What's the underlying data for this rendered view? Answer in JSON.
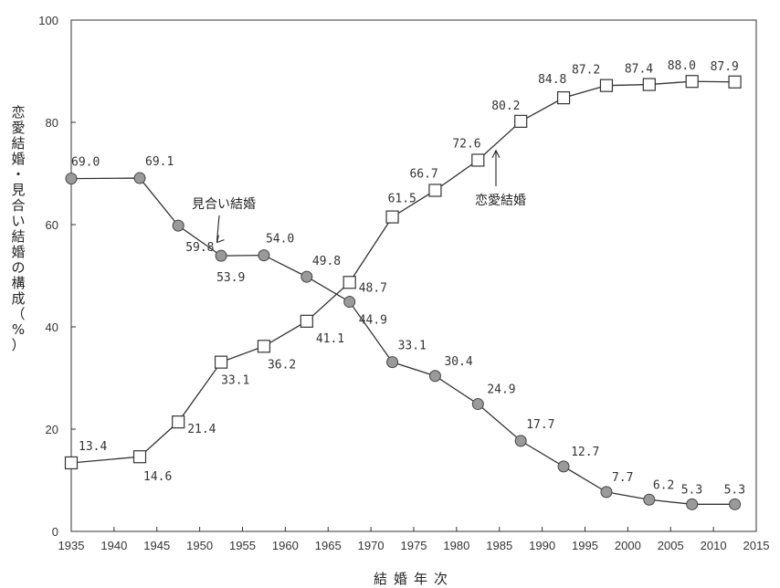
{
  "chart_data": {
    "type": "line",
    "title": "",
    "xlabel": "結婚年次",
    "ylabel": "恋愛結婚・見合い結婚の構成（%）",
    "xlim": [
      1935,
      2015
    ],
    "ylim": [
      0,
      100
    ],
    "xticks": [
      1935,
      1940,
      1945,
      1950,
      1955,
      1960,
      1965,
      1970,
      1975,
      1980,
      1985,
      1990,
      1995,
      2000,
      2005,
      2010,
      2015
    ],
    "yticks": [
      0,
      20,
      40,
      60,
      80,
      100
    ],
    "grid": false,
    "series": [
      {
        "name": "見合い結婚",
        "marker": "circle",
        "color": "#9a9a9a",
        "points": [
          {
            "x": 1935,
            "y": 69.0,
            "label": "69.0"
          },
          {
            "x": 1943,
            "y": 69.1,
            "label": "69.1"
          },
          {
            "x": 1947.5,
            "y": 59.8,
            "label": "59.8"
          },
          {
            "x": 1952.5,
            "y": 53.9,
            "label": "53.9"
          },
          {
            "x": 1957.5,
            "y": 54.0,
            "label": "54.0"
          },
          {
            "x": 1962.5,
            "y": 49.8,
            "label": "49.8"
          },
          {
            "x": 1967.5,
            "y": 44.9,
            "label": "44.9"
          },
          {
            "x": 1972.5,
            "y": 33.1,
            "label": "33.1"
          },
          {
            "x": 1977.5,
            "y": 30.4,
            "label": "30.4"
          },
          {
            "x": 1982.5,
            "y": 24.9,
            "label": "24.9"
          },
          {
            "x": 1987.5,
            "y": 17.7,
            "label": "17.7"
          },
          {
            "x": 1992.5,
            "y": 12.7,
            "label": "12.7"
          },
          {
            "x": 1997.5,
            "y": 7.7,
            "label": "7.7"
          },
          {
            "x": 2002.5,
            "y": 6.2,
            "label": "6.2"
          },
          {
            "x": 2007.5,
            "y": 5.3,
            "label": "5.3"
          },
          {
            "x": 2012.5,
            "y": 5.3,
            "label": "5.3"
          }
        ]
      },
      {
        "name": "恋愛結婚",
        "marker": "square",
        "color": "#ffffff",
        "points": [
          {
            "x": 1935,
            "y": 13.4,
            "label": "13.4"
          },
          {
            "x": 1943,
            "y": 14.6,
            "label": "14.6"
          },
          {
            "x": 1947.5,
            "y": 21.4,
            "label": "21.4"
          },
          {
            "x": 1952.5,
            "y": 33.1,
            "label": "33.1"
          },
          {
            "x": 1957.5,
            "y": 36.2,
            "label": "36.2"
          },
          {
            "x": 1962.5,
            "y": 41.1,
            "label": "41.1"
          },
          {
            "x": 1967.5,
            "y": 48.7,
            "label": "48.7"
          },
          {
            "x": 1972.5,
            "y": 61.5,
            "label": "61.5"
          },
          {
            "x": 1977.5,
            "y": 66.7,
            "label": "66.7"
          },
          {
            "x": 1982.5,
            "y": 72.6,
            "label": "72.6"
          },
          {
            "x": 1987.5,
            "y": 80.2,
            "label": "80.2"
          },
          {
            "x": 1992.5,
            "y": 84.8,
            "label": "84.8"
          },
          {
            "x": 1997.5,
            "y": 87.2,
            "label": "87.2"
          },
          {
            "x": 2002.5,
            "y": 87.4,
            "label": "87.4"
          },
          {
            "x": 2007.5,
            "y": 88.0,
            "label": "88.0"
          },
          {
            "x": 2012.5,
            "y": 87.9,
            "label": "87.9"
          }
        ]
      }
    ],
    "annotations": [
      {
        "text": "見合い結婚",
        "series": "見合い結婚",
        "arrow_to": {
          "x": 1952.0,
          "y": 56.5
        }
      },
      {
        "text": "恋愛結婚",
        "series": "恋愛結婚",
        "arrow_to": {
          "x": 1984.6,
          "y": 74.5
        }
      }
    ]
  }
}
